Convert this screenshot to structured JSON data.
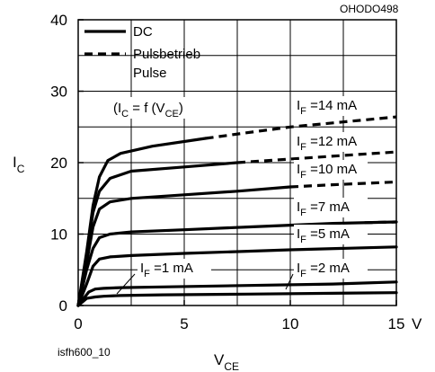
{
  "chart_data": {
    "type": "line",
    "figure_code": "OHODO498",
    "file_id": "isfh600_10",
    "condition": "(I_C = f (V_CE)",
    "xlabel": "V",
    "xlabel_sub": "CE",
    "ylabel": "I",
    "ylabel_sub": "C",
    "x_unit": "V",
    "xlim": [
      0,
      15
    ],
    "ylim": [
      0,
      40
    ],
    "x_ticks": [
      "0",
      "5",
      "10",
      "15"
    ],
    "y_ticks": [
      "0",
      "10",
      "20",
      "30",
      "40"
    ],
    "grid": true,
    "legend": [
      {
        "label": "DC",
        "style": "solid"
      },
      {
        "label": "Pulsbetrieb",
        "style": "dashed"
      },
      {
        "label": "Pulse",
        "style": "none"
      }
    ],
    "series": [
      {
        "name": "I_F =1 mA",
        "label_prefix": "I",
        "label_sub": "F",
        "label_suffix": " =1 mA",
        "x": [
          0,
          0.4,
          0.8,
          1.2,
          2,
          4,
          8,
          15
        ],
        "y": [
          0,
          1.0,
          1.2,
          1.3,
          1.4,
          1.5,
          1.6,
          1.8
        ],
        "pulse_x": []
      },
      {
        "name": "I_F =2 mA",
        "label_prefix": "I",
        "label_sub": "F",
        "label_suffix": " =2 mA",
        "x": [
          0,
          0.5,
          0.8,
          1.2,
          2,
          4,
          8,
          12,
          15
        ],
        "y": [
          0,
          1.9,
          2.3,
          2.4,
          2.5,
          2.6,
          2.8,
          3.0,
          3.3
        ],
        "pulse_x": []
      },
      {
        "name": "I_F =5 mA",
        "label_prefix": "I",
        "label_sub": "F",
        "label_suffix": " =5 mA",
        "x": [
          0,
          0.4,
          0.7,
          1.0,
          1.5,
          2.5,
          5,
          10,
          15
        ],
        "y": [
          0,
          3.0,
          5.5,
          6.5,
          6.8,
          7.0,
          7.3,
          7.8,
          8.2
        ],
        "pulse_x": []
      },
      {
        "name": "I_F =7 mA",
        "label_prefix": "I",
        "label_sub": "F",
        "label_suffix": " =7 mA",
        "x": [
          0,
          0.4,
          0.7,
          1.0,
          1.5,
          2.5,
          5,
          8,
          12,
          15
        ],
        "y": [
          0,
          5.0,
          8.0,
          9.5,
          10.0,
          10.3,
          10.6,
          11.0,
          11.5,
          11.7
        ],
        "pulse_x": [
          13.5,
          15
        ],
        "pulse_y": [
          11.6,
          11.7
        ]
      },
      {
        "name": "I_F =10 mA",
        "label_prefix": "I",
        "label_sub": "F",
        "label_suffix": " =10 mA",
        "x": [
          0,
          0.4,
          0.7,
          1.0,
          1.5,
          2.5,
          5,
          7.5,
          10
        ],
        "y": [
          0,
          6.0,
          11.0,
          13.5,
          14.5,
          15.0,
          15.5,
          16.0,
          16.6
        ],
        "pulse_x": [
          10,
          12,
          15
        ],
        "pulse_y": [
          16.6,
          16.9,
          17.3
        ]
      },
      {
        "name": "I_F =12 mA",
        "label_prefix": "I",
        "label_sub": "F",
        "label_suffix": " =12 mA",
        "x": [
          0,
          0.4,
          0.7,
          1.0,
          1.5,
          2.5,
          5,
          7.5
        ],
        "y": [
          0,
          7.0,
          13.0,
          16.0,
          17.8,
          18.8,
          19.4,
          20.0
        ],
        "pulse_x": [
          7.5,
          10,
          12.5,
          15
        ],
        "pulse_y": [
          20.0,
          20.5,
          21.0,
          21.5
        ]
      },
      {
        "name": "I_F =14 mA",
        "label_prefix": "I",
        "label_sub": "F",
        "label_suffix": " =14 mA",
        "x": [
          0,
          0.4,
          0.7,
          1.0,
          1.4,
          2.0,
          3.5,
          6
        ],
        "y": [
          0,
          7.5,
          14.0,
          18.0,
          20.3,
          21.3,
          22.3,
          23.4
        ],
        "pulse_x": [
          6,
          8,
          10,
          12.5,
          15
        ],
        "pulse_y": [
          23.4,
          24.2,
          25.0,
          25.7,
          26.4
        ]
      }
    ]
  }
}
